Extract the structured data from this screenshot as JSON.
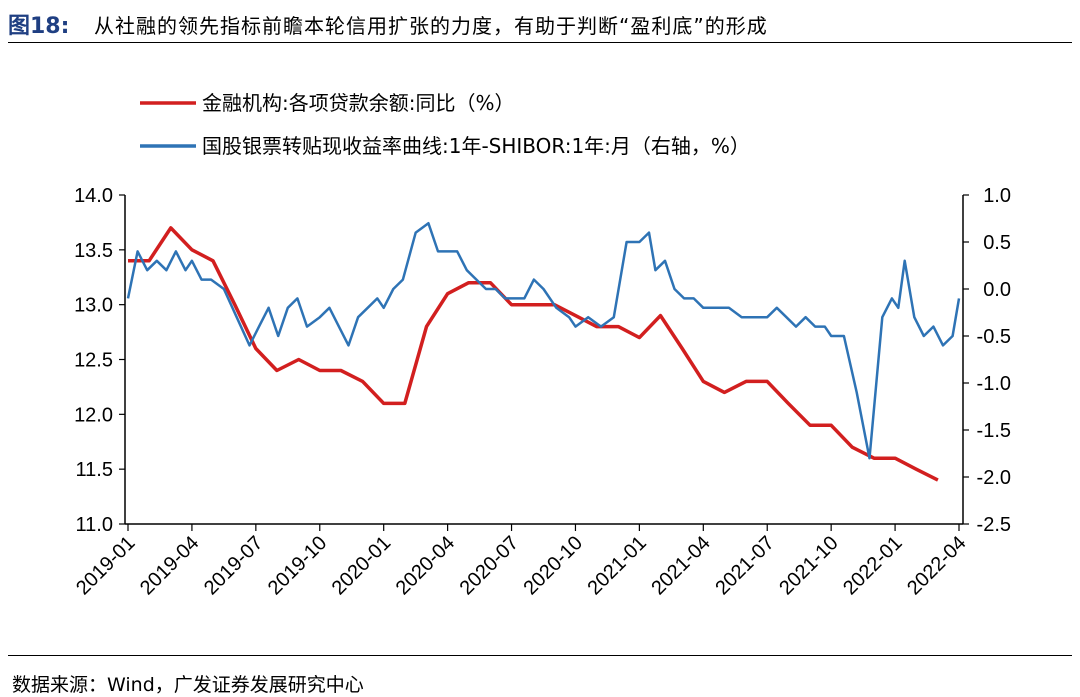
{
  "figure_label": "图18:",
  "title": "从社融的领先指标前瞻本轮信用扩张的力度，有助于判断“盈利底”的形成",
  "source": "数据来源：Wind，广发证券发展研究中心",
  "colors": {
    "series_red": "#d21f1f",
    "series_blue": "#2e73b5",
    "title_accent": "#1f3f82"
  },
  "chart_data": {
    "type": "line",
    "categories": [
      "2019-01",
      "2019-04",
      "2019-07",
      "2019-10",
      "2020-01",
      "2020-04",
      "2020-07",
      "2020-10",
      "2021-01",
      "2021-04",
      "2021-07",
      "2021-10",
      "2022-01",
      "2022-04"
    ],
    "left_axis": {
      "ylim": [
        11.0,
        14.0
      ],
      "ticks": [
        "14.0",
        "13.5",
        "13.0",
        "12.5",
        "12.0",
        "11.5",
        "11.0"
      ]
    },
    "right_axis": {
      "ylim": [
        -2.5,
        1.0
      ],
      "ticks": [
        "1.0",
        "0.5",
        "0.0",
        "-0.5",
        "-1.0",
        "-1.5",
        "-2.0",
        "-2.5"
      ]
    },
    "series": [
      {
        "name": "金融机构:各项贷款余额:同比（%）",
        "axis": "left",
        "x": [
          0,
          0.33,
          0.67,
          1,
          1.33,
          1.67,
          2,
          2.33,
          2.67,
          3,
          3.33,
          3.67,
          4,
          4.33,
          4.67,
          5,
          5.33,
          5.67,
          6,
          6.33,
          6.67,
          7,
          7.33,
          7.67,
          8,
          8.33,
          8.67,
          9,
          9.33,
          9.67,
          10,
          10.33,
          10.67,
          11,
          11.33,
          11.67,
          12,
          12.33,
          12.67
        ],
        "values": [
          13.4,
          13.4,
          13.7,
          13.5,
          13.4,
          13.0,
          12.6,
          12.4,
          12.5,
          12.4,
          12.4,
          12.3,
          12.1,
          12.1,
          12.8,
          13.1,
          13.2,
          13.2,
          13.0,
          13.0,
          13.0,
          12.9,
          12.8,
          12.8,
          12.7,
          12.9,
          12.6,
          12.3,
          12.2,
          12.3,
          12.3,
          12.1,
          11.9,
          11.9,
          11.7,
          11.6,
          11.6,
          11.5,
          11.4
        ]
      },
      {
        "name": "国股银票转贴现收益率曲线:1年-SHIBOR:1年:月（右轴，%）",
        "axis": "right",
        "x": [
          0,
          0.15,
          0.3,
          0.45,
          0.6,
          0.75,
          0.9,
          1,
          1.15,
          1.3,
          1.5,
          1.7,
          1.9,
          2.05,
          2.2,
          2.35,
          2.5,
          2.65,
          2.8,
          3,
          3.15,
          3.3,
          3.45,
          3.6,
          3.75,
          3.9,
          4,
          4.15,
          4.3,
          4.5,
          4.7,
          4.85,
          5,
          5.15,
          5.3,
          5.45,
          5.6,
          5.75,
          5.9,
          6.05,
          6.2,
          6.35,
          6.5,
          6.7,
          6.9,
          7,
          7.2,
          7.4,
          7.6,
          7.8,
          8,
          8.15,
          8.25,
          8.4,
          8.55,
          8.7,
          8.85,
          9,
          9.2,
          9.4,
          9.6,
          9.8,
          10,
          10.15,
          10.3,
          10.45,
          10.6,
          10.75,
          10.9,
          11,
          11.2,
          11.4,
          11.6,
          11.8,
          11.95,
          12.05,
          12.15,
          12.3,
          12.45,
          12.6,
          12.75,
          12.9,
          13.0
        ],
        "values": [
          -0.1,
          0.4,
          0.2,
          0.3,
          0.2,
          0.4,
          0.2,
          0.3,
          0.1,
          0.1,
          0.0,
          -0.3,
          -0.6,
          -0.4,
          -0.2,
          -0.5,
          -0.2,
          -0.1,
          -0.4,
          -0.3,
          -0.2,
          -0.4,
          -0.6,
          -0.3,
          -0.2,
          -0.1,
          -0.2,
          0.0,
          0.1,
          0.6,
          0.7,
          0.4,
          0.4,
          0.4,
          0.2,
          0.1,
          0.0,
          0.0,
          -0.1,
          -0.1,
          -0.1,
          0.1,
          0.0,
          -0.2,
          -0.3,
          -0.4,
          -0.3,
          -0.4,
          -0.3,
          0.5,
          0.5,
          0.6,
          0.2,
          0.3,
          0.0,
          -0.1,
          -0.1,
          -0.2,
          -0.2,
          -0.2,
          -0.3,
          -0.3,
          -0.3,
          -0.2,
          -0.3,
          -0.4,
          -0.3,
          -0.4,
          -0.4,
          -0.5,
          -0.5,
          -1.1,
          -1.8,
          -0.3,
          -0.1,
          -0.2,
          0.3,
          -0.3,
          -0.5,
          -0.4,
          -0.6,
          -0.5,
          -0.1
        ]
      }
    ],
    "legend_position": "top-left"
  }
}
